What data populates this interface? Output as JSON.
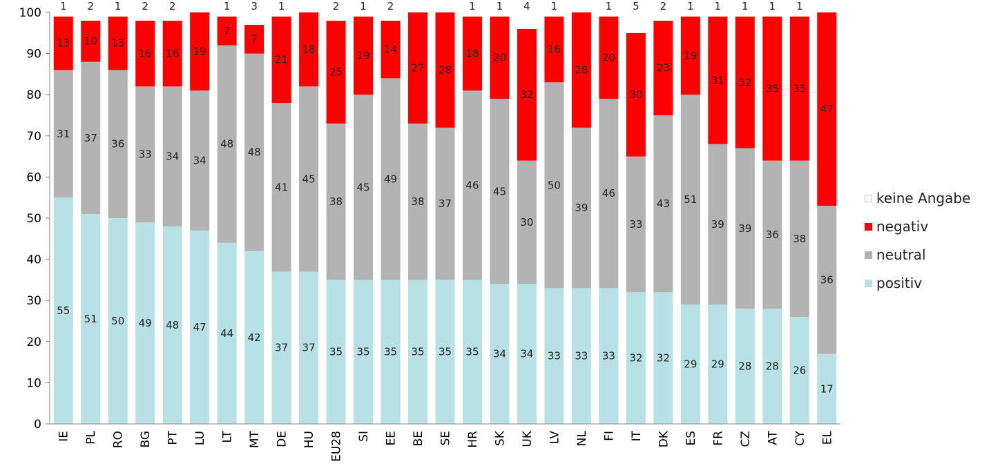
{
  "chart_data": {
    "type": "bar",
    "stacked": true,
    "categories": [
      "IE",
      "PL",
      "RO",
      "BG",
      "PT",
      "LU",
      "LT",
      "MT",
      "DE",
      "HU",
      "EU28",
      "SI",
      "EE",
      "BE",
      "SE",
      "HR",
      "SK",
      "UK",
      "LV",
      "NL",
      "FI",
      "IT",
      "DK",
      "ES",
      "FR",
      "CZ",
      "AT",
      "CY",
      "EL"
    ],
    "series": [
      {
        "name": "positiv",
        "color": "#b7e1e4",
        "values": [
          55,
          51,
          50,
          49,
          48,
          47,
          44,
          42,
          37,
          37,
          35,
          35,
          35,
          35,
          35,
          35,
          34,
          34,
          33,
          33,
          33,
          32,
          32,
          29,
          29,
          28,
          28,
          26,
          17
        ]
      },
      {
        "name": "neutral",
        "color": "#b3b3b3",
        "values": [
          31,
          37,
          36,
          33,
          34,
          34,
          48,
          48,
          41,
          45,
          38,
          45,
          49,
          38,
          37,
          46,
          45,
          30,
          50,
          39,
          46,
          33,
          43,
          51,
          39,
          39,
          36,
          38,
          36
        ]
      },
      {
        "name": "negativ",
        "color": "#ff0000",
        "values": [
          13,
          10,
          13,
          16,
          16,
          19,
          7,
          7,
          21,
          18,
          25,
          19,
          14,
          27,
          28,
          18,
          20,
          32,
          16,
          28,
          20,
          30,
          23,
          19,
          31,
          32,
          35,
          35,
          47
        ]
      },
      {
        "name": "keine Angabe",
        "color": "#ffffff",
        "values": [
          1,
          2,
          1,
          2,
          2,
          0,
          1,
          3,
          1,
          0,
          2,
          1,
          2,
          0,
          0,
          1,
          1,
          4,
          1,
          0,
          1,
          5,
          2,
          1,
          1,
          1,
          1,
          1,
          0
        ]
      }
    ],
    "ylim": [
      0,
      100
    ],
    "yticks": [
      "0",
      "10",
      "20",
      "30",
      "40",
      "50",
      "60",
      "70",
      "80",
      "90",
      "100"
    ],
    "grid": false,
    "legend_position": "right"
  },
  "legend": [
    {
      "label": "keine Angabe",
      "color": "#ffffff",
      "border": "#cccccc"
    },
    {
      "label": "negativ",
      "color": "#ff0000",
      "border": "#ff0000"
    },
    {
      "label": "neutral",
      "color": "#b3b3b3",
      "border": "#b3b3b3"
    },
    {
      "label": "positiv",
      "color": "#b7e1e4",
      "border": "#b7e1e4"
    }
  ]
}
